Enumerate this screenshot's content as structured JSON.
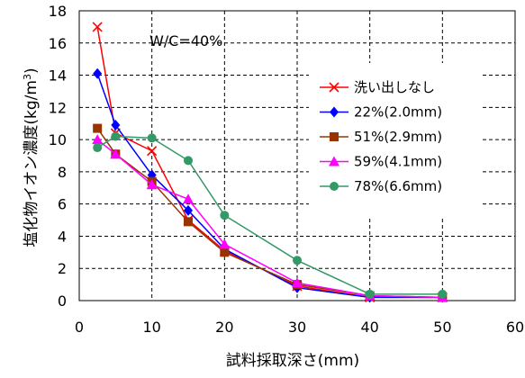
{
  "chart_data": {
    "type": "line",
    "annotation": "W/C=40%",
    "xlabel": "試料採取深さ(mm)",
    "ylabel": "塩化物イオン濃度(kg/m",
    "ylabel_sup": "3",
    "ylabel_close": ")",
    "xlim": [
      0,
      60
    ],
    "ylim": [
      0,
      18
    ],
    "xticks": [
      0,
      10,
      20,
      30,
      40,
      50,
      60
    ],
    "yticks": [
      0,
      2,
      4,
      6,
      8,
      10,
      12,
      14,
      16,
      18
    ],
    "grid": true,
    "legend_position": "right",
    "series": [
      {
        "name": "洗い出しなし",
        "color": "#ff0000",
        "marker": "x",
        "x": [
          2.5,
          5,
          10,
          15,
          20,
          30,
          40,
          50
        ],
        "y": [
          17.0,
          10.4,
          9.3,
          5.0,
          3.1,
          0.9,
          0.2,
          0.2
        ]
      },
      {
        "name": "22%(2.0mm)",
        "color": "#0000ff",
        "marker": "diamond",
        "x": [
          2.5,
          5,
          10,
          15,
          20,
          30,
          40,
          50
        ],
        "y": [
          14.1,
          10.9,
          7.8,
          5.6,
          3.2,
          0.8,
          0.2,
          0.2
        ]
      },
      {
        "name": "51%(2.9mm)",
        "color": "#993300",
        "marker": "square",
        "x": [
          2.5,
          5,
          10,
          15,
          20,
          30,
          40,
          50
        ],
        "y": [
          10.7,
          9.1,
          7.4,
          4.9,
          3.0,
          1.0,
          0.3,
          0.2
        ]
      },
      {
        "name": "59%(4.1mm)",
        "color": "#ff00ff",
        "marker": "triangle",
        "x": [
          2.5,
          5,
          10,
          15,
          20,
          30,
          40,
          50
        ],
        "y": [
          10.0,
          9.1,
          7.2,
          6.3,
          3.5,
          1.1,
          0.3,
          0.2
        ]
      },
      {
        "name": "78%(6.6mm)",
        "color": "#339966",
        "marker": "circle",
        "x": [
          2.5,
          5,
          10,
          15,
          20,
          30,
          40,
          50
        ],
        "y": [
          9.5,
          10.2,
          10.1,
          8.7,
          5.3,
          2.5,
          0.4,
          0.4
        ]
      }
    ]
  }
}
